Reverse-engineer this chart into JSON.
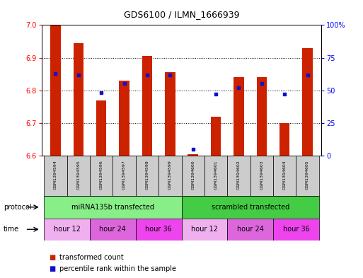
{
  "title": "GDS6100 / ILMN_1666939",
  "samples": [
    "GSM1394594",
    "GSM1394595",
    "GSM1394596",
    "GSM1394597",
    "GSM1394598",
    "GSM1394599",
    "GSM1394600",
    "GSM1394601",
    "GSM1394602",
    "GSM1394603",
    "GSM1394604",
    "GSM1394605"
  ],
  "transformed_count": [
    7.0,
    6.945,
    6.77,
    6.83,
    6.905,
    6.855,
    6.605,
    6.72,
    6.84,
    6.84,
    6.7,
    6.93
  ],
  "percentile_rank": [
    63,
    62,
    48,
    55,
    62,
    62,
    5,
    47,
    52,
    55,
    47,
    62
  ],
  "ylim_left": [
    6.6,
    7.0
  ],
  "ylim_right": [
    0,
    100
  ],
  "yticks_left": [
    6.6,
    6.7,
    6.8,
    6.9,
    7.0
  ],
  "yticks_right": [
    0,
    25,
    50,
    75,
    100
  ],
  "bar_color": "#cc2200",
  "dot_color": "#1111cc",
  "protocol_groups": [
    {
      "label": "miRNA135b transfected",
      "start": 0,
      "end": 6,
      "color": "#88ee88"
    },
    {
      "label": "scrambled transfected",
      "start": 6,
      "end": 12,
      "color": "#44cc44"
    }
  ],
  "time_groups": [
    {
      "label": "hour 12",
      "start": 0,
      "end": 2,
      "color": "#f0b0f0"
    },
    {
      "label": "hour 24",
      "start": 2,
      "end": 4,
      "color": "#dd66dd"
    },
    {
      "label": "hour 36",
      "start": 4,
      "end": 6,
      "color": "#ee44ee"
    },
    {
      "label": "hour 12",
      "start": 6,
      "end": 8,
      "color": "#f0b0f0"
    },
    {
      "label": "hour 24",
      "start": 8,
      "end": 10,
      "color": "#dd66dd"
    },
    {
      "label": "hour 36",
      "start": 10,
      "end": 12,
      "color": "#ee44ee"
    }
  ],
  "legend_items": [
    {
      "label": "transformed count",
      "color": "#cc2200"
    },
    {
      "label": "percentile rank within the sample",
      "color": "#1111cc"
    }
  ],
  "bg_color": "#ffffff",
  "bar_width": 0.45,
  "bar_bottom": 6.6,
  "sample_box_color": "#cccccc",
  "grid_dotted_at": [
    6.7,
    6.8,
    6.9
  ]
}
